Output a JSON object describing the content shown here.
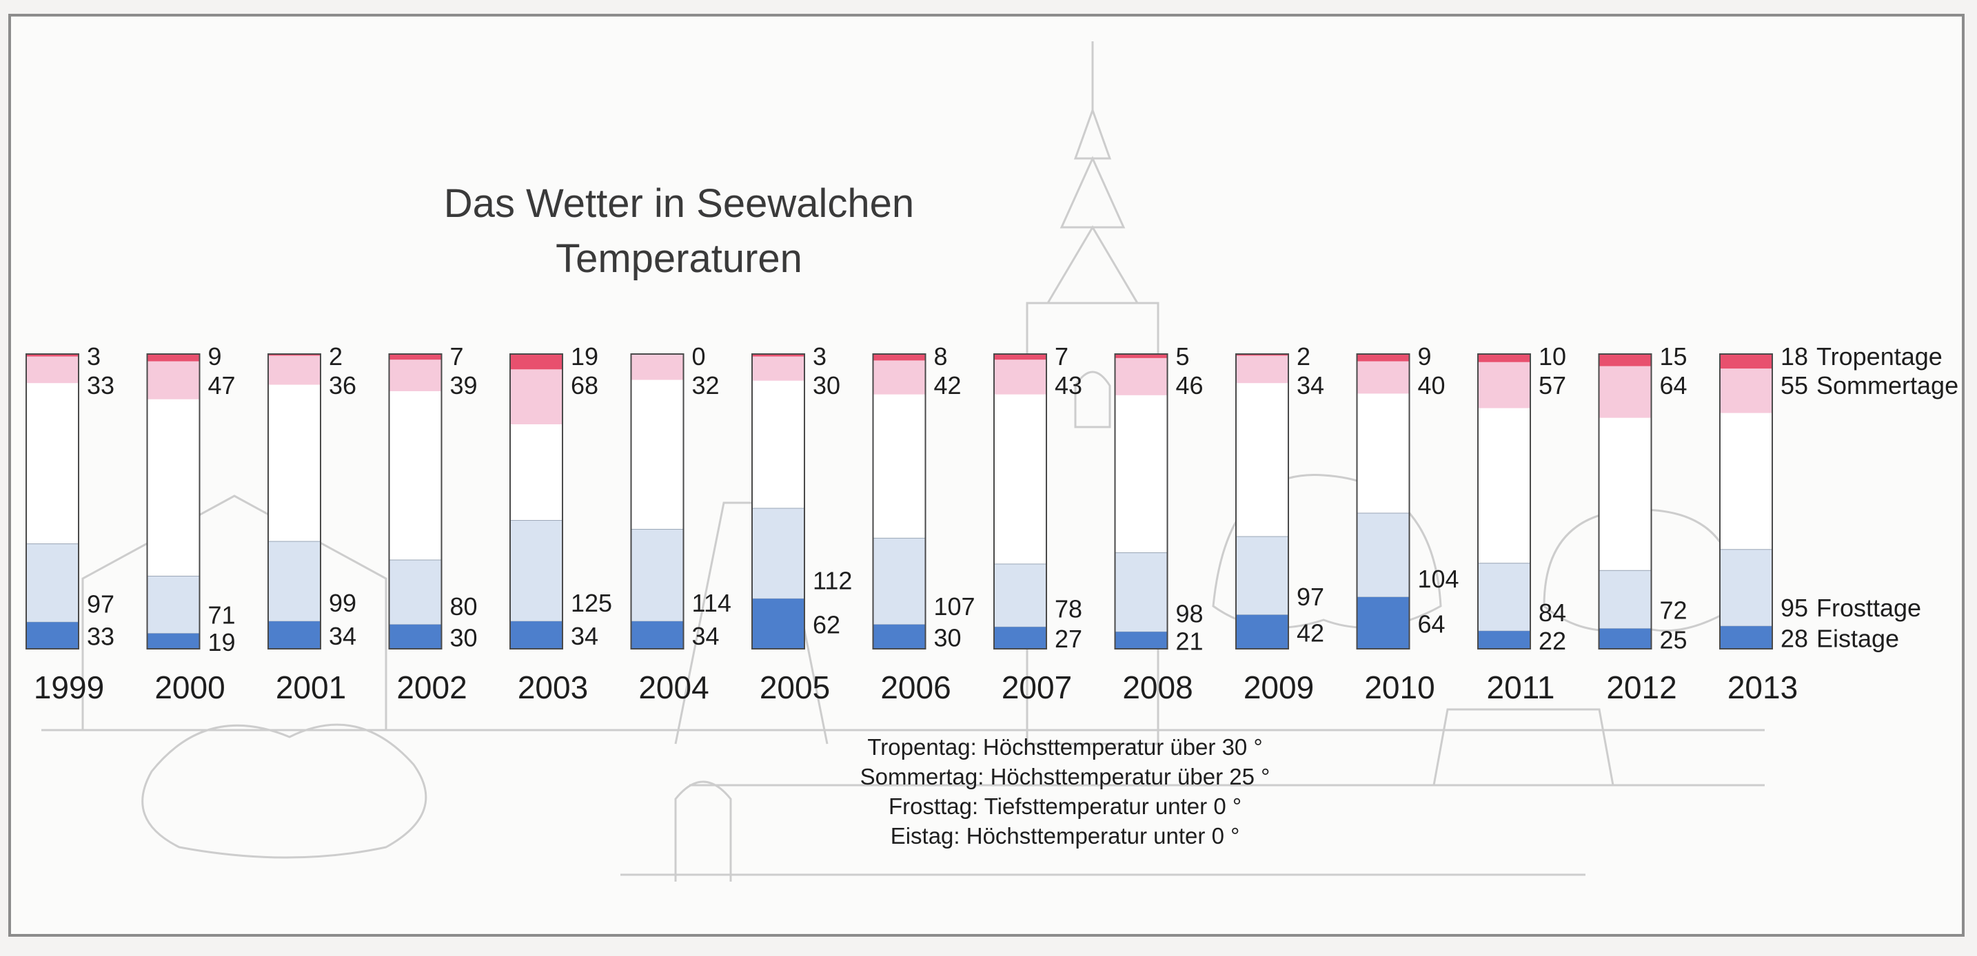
{
  "chart_data": {
    "type": "bar",
    "subtype": "stacked-column",
    "title": "Das Wetter in Seewalchen",
    "subtitle": "Temperaturen",
    "categories": [
      "1999",
      "2000",
      "2001",
      "2002",
      "2003",
      "2004",
      "2005",
      "2006",
      "2007",
      "2008",
      "2009",
      "2010",
      "2011",
      "2012",
      "2013"
    ],
    "series": [
      {
        "name": "Tropentage",
        "label": "Tropentage",
        "color": "#e8506e",
        "position": "top",
        "values": [
          3,
          9,
          2,
          7,
          19,
          0,
          3,
          8,
          7,
          5,
          2,
          9,
          10,
          15,
          18
        ]
      },
      {
        "name": "Sommertage",
        "label": "Sommertage",
        "color": "#f6cadb",
        "position": "top",
        "values": [
          33,
          47,
          36,
          39,
          68,
          32,
          30,
          42,
          43,
          46,
          34,
          40,
          57,
          64,
          55
        ]
      },
      {
        "name": "Frosttage",
        "label": "Frosttage",
        "color": "#d9e3f1",
        "position": "bottom",
        "values": [
          97,
          71,
          99,
          80,
          125,
          114,
          112,
          107,
          78,
          98,
          97,
          104,
          84,
          72,
          95
        ]
      },
      {
        "name": "Eistage",
        "label": "Eistage",
        "color": "#4d7fcc",
        "position": "bottom",
        "values": [
          33,
          19,
          34,
          30,
          34,
          34,
          62,
          30,
          27,
          21,
          42,
          64,
          22,
          25,
          28
        ]
      }
    ],
    "total_days_per_bar": 365,
    "xlabel": "",
    "ylabel": ""
  },
  "definitions": [
    "Tropentag: Höchsttemperatur über 30 °",
    "Sommertag: Höchsttemperatur über 25 °",
    "Frosttag: Tiefsttemperatur unter 0 °",
    "Eistag: Höchsttemperatur unter 0 °"
  ],
  "colors": {
    "border": "#8c8c8c",
    "barOutline": "#4a4a4a",
    "background": "#fbfbfa",
    "sketch": "#c9c9c9"
  }
}
